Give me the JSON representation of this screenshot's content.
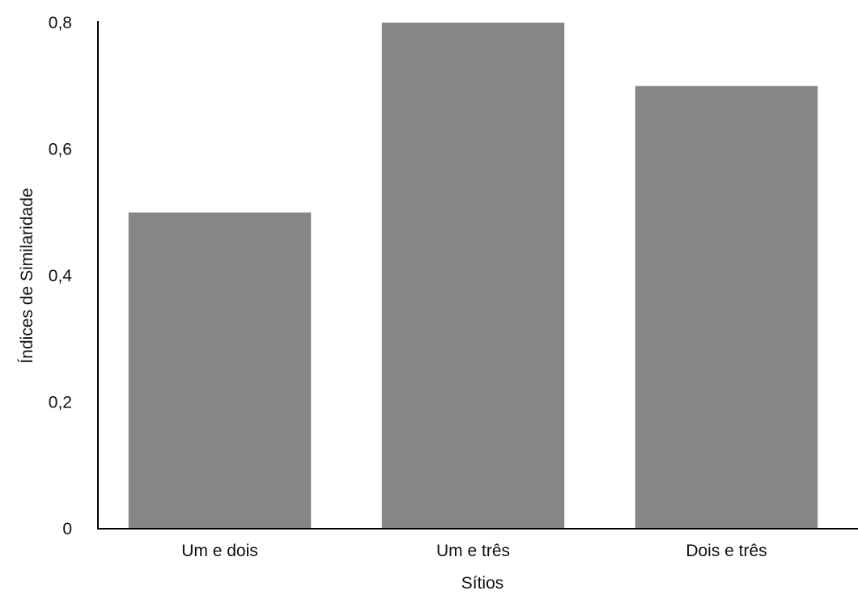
{
  "chart_data": {
    "type": "bar",
    "title": "",
    "xlabel": "Sítios",
    "ylabel": "Índices de Similaridade",
    "categories": [
      "Um e dois",
      "Um e três",
      "Dois e três"
    ],
    "values": [
      0.5,
      0.8,
      0.7
    ],
    "ylim": [
      0,
      0.8
    ],
    "yticks": [
      0,
      0.2,
      0.4,
      0.6,
      0.8
    ],
    "ytick_labels": [
      "0",
      "0,2",
      "0,4",
      "0,6",
      "0,8"
    ],
    "bar_color": "#868686",
    "axis_color": "#000000",
    "grid": false,
    "legend": "none"
  }
}
